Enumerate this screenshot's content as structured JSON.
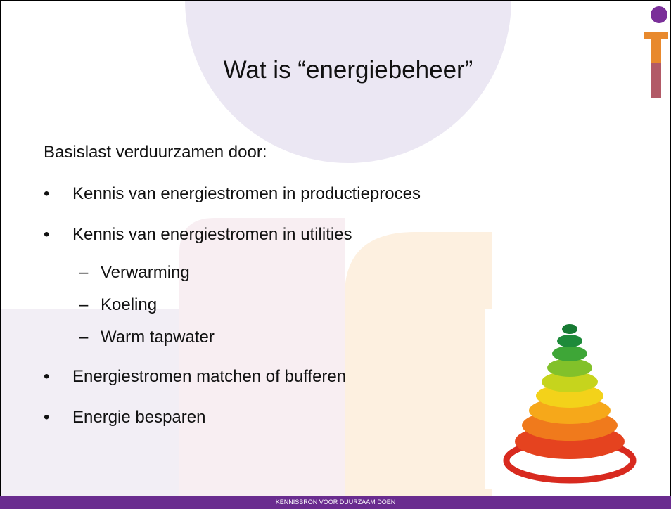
{
  "header": {
    "title": "Wat is “energiebeheer”"
  },
  "intro": "Basislast verduurzamen door:",
  "bullets": [
    {
      "text": "Kennis van energiestromen in productieproces",
      "sub": []
    },
    {
      "text": "Kennis van energiestromen in utilities",
      "sub": [
        "Verwarming",
        "Koeling",
        "Warm tapwater"
      ]
    },
    {
      "text": "Energiestromen matchen of bufferen",
      "sub": []
    },
    {
      "text": "Energie besparen",
      "sub": []
    }
  ],
  "footer": "KENNISBRON VOOR DUURZAAM DOEN"
}
